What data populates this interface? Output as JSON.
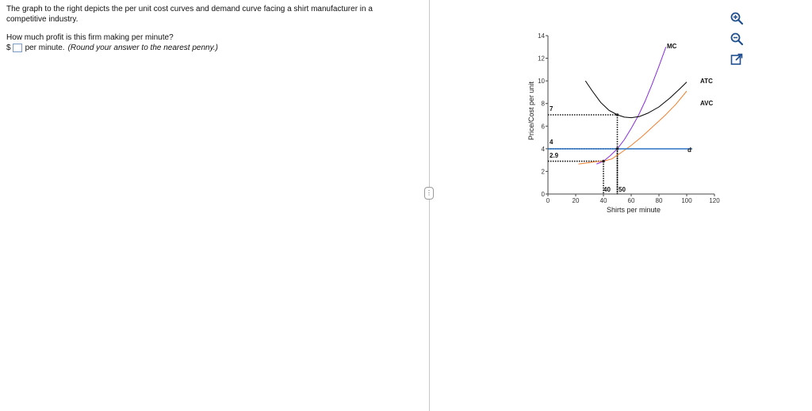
{
  "question": {
    "intro": "The graph to the right depicts the per unit cost curves and demand curve facing a shirt manufacturer in a competitive industry.",
    "prompt": "How much profit is this firm making per minute?",
    "currency_symbol": "$",
    "unit_text": "per minute.",
    "hint": "(Round your answer to the nearest penny.)",
    "answer_value": ""
  },
  "splitter": {
    "handle_glyph": "⋮"
  },
  "tools": {
    "zoom_in_icon": "zoom-in-icon",
    "zoom_out_icon": "zoom-out-icon",
    "popout_icon": "external-link-icon"
  },
  "chart_data": {
    "type": "line",
    "xlabel": "Shirts per minute",
    "ylabel": "Price/Cost per unit",
    "xlim": [
      0,
      120
    ],
    "ylim": [
      0,
      14
    ],
    "x_ticks": [
      "0",
      "20",
      "40",
      "60",
      "80",
      "100",
      "120"
    ],
    "y_ticks": [
      "0",
      "2",
      "4",
      "6",
      "8",
      "10",
      "12",
      "14"
    ],
    "series": [
      {
        "name": "MC",
        "color": "#8a2be2",
        "points": [
          [
            35,
            2.65
          ],
          [
            40,
            2.9
          ],
          [
            45,
            3.4
          ],
          [
            50,
            4.0
          ],
          [
            55,
            4.8
          ],
          [
            60,
            5.8
          ],
          [
            65,
            6.9
          ],
          [
            70,
            8.2
          ],
          [
            75,
            9.7
          ],
          [
            80,
            11.3
          ],
          [
            85,
            13.0
          ]
        ]
      },
      {
        "name": "ATC",
        "color": "#000000",
        "points": [
          [
            27,
            10.0
          ],
          [
            32,
            9.1
          ],
          [
            38,
            8.1
          ],
          [
            44,
            7.4
          ],
          [
            50,
            7.0
          ],
          [
            55,
            6.8
          ],
          [
            60,
            6.75
          ],
          [
            66,
            6.85
          ],
          [
            72,
            7.15
          ],
          [
            80,
            7.7
          ],
          [
            88,
            8.5
          ],
          [
            95,
            9.3
          ],
          [
            100,
            9.9
          ]
        ]
      },
      {
        "name": "AVC",
        "color": "#f07f2e",
        "points": [
          [
            22,
            2.65
          ],
          [
            28,
            2.75
          ],
          [
            34,
            2.85
          ],
          [
            40,
            2.9
          ],
          [
            46,
            3.1
          ],
          [
            52,
            3.6
          ],
          [
            60,
            4.3
          ],
          [
            68,
            5.1
          ],
          [
            76,
            6.0
          ],
          [
            84,
            6.9
          ],
          [
            92,
            7.9
          ],
          [
            100,
            9.1
          ]
        ]
      },
      {
        "name": "d",
        "color": "#3a7dc9",
        "points": [
          [
            0,
            4
          ],
          [
            104,
            4
          ]
        ]
      }
    ],
    "annotations": {
      "price_labels": [
        "7",
        "4",
        "2.9"
      ],
      "quantity_labels": [
        "40",
        "50"
      ],
      "guide_points": [
        [
          50,
          7.0
        ],
        [
          50,
          4.0
        ],
        [
          40,
          2.9
        ]
      ]
    }
  }
}
